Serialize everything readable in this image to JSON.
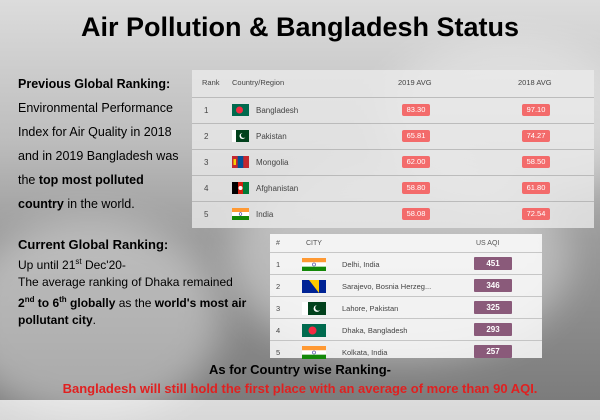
{
  "title": "Air Pollution & Bangladesh Status",
  "previous": {
    "heading": "Previous Global Ranking:",
    "text_a": "Environmental Performance Index for Air Quality in 2018 and in 2019 Bangladesh was the ",
    "text_bold": "top most polluted country",
    "text_b": " in the world."
  },
  "current": {
    "heading": "Current Global Ranking:",
    "line1_a": "Up until 21",
    "line1_sup": "st",
    "line1_b": " Dec'20-",
    "line2": "The average ranking of Dhaka remained",
    "line3_bold1": "2",
    "line3_sup1": "nd",
    "line3_mid": " to 6",
    "line3_sup2": "th",
    "line3_bold2": " globally",
    "line3_c": " as the ",
    "line3_bold3": "world's most air pollutant city",
    "line3_d": "."
  },
  "country_table": {
    "headers": {
      "rank": "Rank",
      "country": "Country/Region",
      "y2019": "2019 AVG",
      "y2018": "2018 AVG"
    },
    "rows": [
      {
        "rank": "1",
        "country": "Bangladesh",
        "v2019": "83.30",
        "v2018": "97.10",
        "flag": "bangladesh-flag"
      },
      {
        "rank": "2",
        "country": "Pakistan",
        "v2019": "65.81",
        "v2018": "74.27",
        "flag": "pakistan-flag"
      },
      {
        "rank": "3",
        "country": "Mongolia",
        "v2019": "62.00",
        "v2018": "58.50",
        "flag": "mongolia-flag"
      },
      {
        "rank": "4",
        "country": "Afghanistan",
        "v2019": "58.80",
        "v2018": "61.80",
        "flag": "afghanistan-flag"
      },
      {
        "rank": "5",
        "country": "India",
        "v2019": "58.08",
        "v2018": "72.54",
        "flag": "india-flag"
      }
    ]
  },
  "city_table": {
    "headers": {
      "rank": "#",
      "city": "CITY",
      "aqi": "US AQI"
    },
    "rows": [
      {
        "rank": "1",
        "city": "Delhi, India",
        "aqi": "451",
        "flag": "india-flag"
      },
      {
        "rank": "2",
        "city": "Sarajevo, Bosnia Herzeg...",
        "aqi": "346",
        "flag": "bosnia-flag"
      },
      {
        "rank": "3",
        "city": "Lahore, Pakistan",
        "aqi": "325",
        "flag": "pakistan-flag"
      },
      {
        "rank": "4",
        "city": "Dhaka, Bangladesh",
        "aqi": "293",
        "flag": "bangladesh-flag"
      },
      {
        "rank": "5",
        "city": "Kolkata, India",
        "aqi": "257",
        "flag": "india-flag"
      }
    ]
  },
  "bottom": {
    "line1": "As for Country wise Ranking-",
    "line2": "Bangladesh will still hold the first place with an average of more than 90 AQI."
  },
  "colors": {
    "pill": "#f36b6b",
    "aqi": "#8a5a7a",
    "highlight": "#e02020"
  }
}
